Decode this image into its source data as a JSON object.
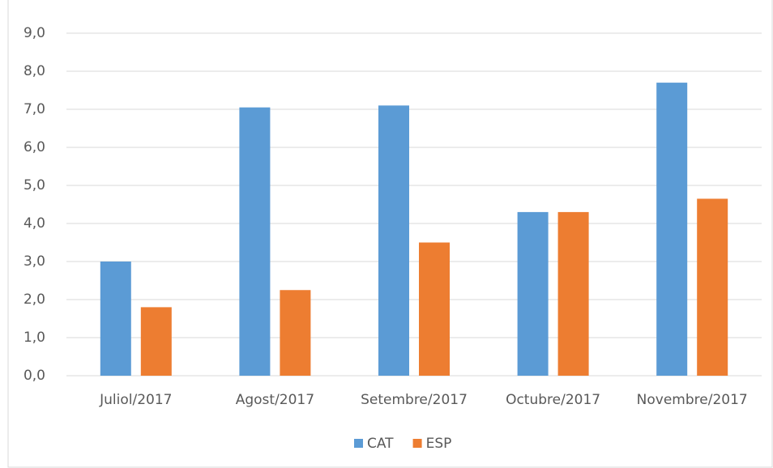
{
  "chart_data": {
    "type": "bar",
    "categories": [
      "Juliol/2017",
      "Agost/2017",
      "Setembre/2017",
      "Octubre/2017",
      "Novembre/2017"
    ],
    "series": [
      {
        "name": "CAT",
        "color": "#5b9bd5",
        "values": [
          3.0,
          7.05,
          7.1,
          4.3,
          7.7
        ]
      },
      {
        "name": "ESP",
        "color": "#ed7d31",
        "values": [
          1.8,
          2.25,
          3.5,
          4.3,
          4.65
        ]
      }
    ],
    "ylim": [
      0,
      9
    ],
    "yticks": [
      {
        "value": 0,
        "label": "0,0"
      },
      {
        "value": 1,
        "label": "1,0"
      },
      {
        "value": 2,
        "label": "2,0"
      },
      {
        "value": 3,
        "label": "3,0"
      },
      {
        "value": 4,
        "label": "4,0"
      },
      {
        "value": 5,
        "label": "5,0"
      },
      {
        "value": 6,
        "label": "6,0"
      },
      {
        "value": 7,
        "label": "7,0"
      },
      {
        "value": 8,
        "label": "8,0"
      },
      {
        "value": 9,
        "label": "9,0"
      }
    ],
    "grid": true,
    "legend": "bottom"
  }
}
